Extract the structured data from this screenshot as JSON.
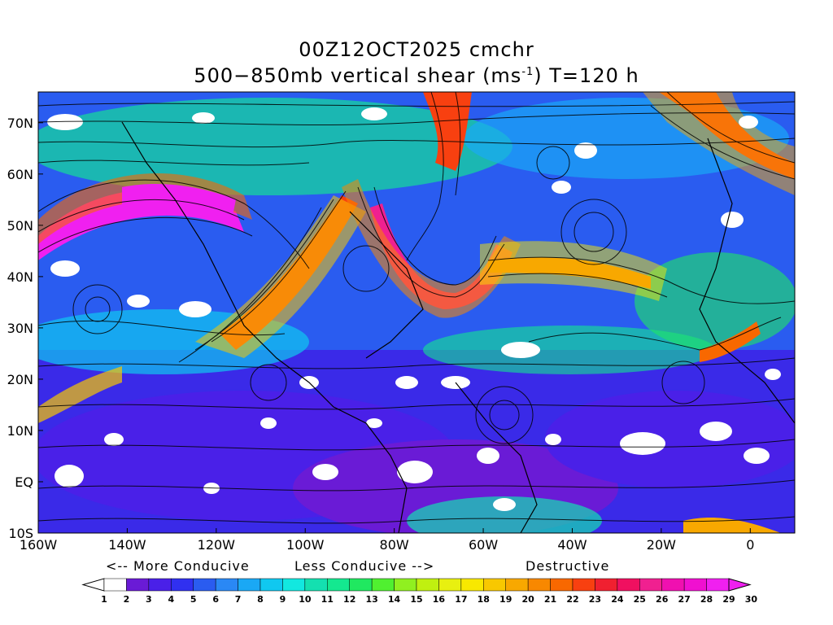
{
  "title": {
    "line1": "00Z12OCT2025 cmchr",
    "line2_prefix": "500−850mb vertical shear (ms",
    "line2_sup": "-1",
    "line2_suffix": ") T=120 h"
  },
  "map": {
    "lat_ticks": [
      "70N",
      "60N",
      "50N",
      "40N",
      "30N",
      "20N",
      "10N",
      "EQ",
      "10S"
    ],
    "lon_ticks": [
      "160W",
      "140W",
      "120W",
      "100W",
      "80W",
      "60W",
      "40W",
      "20W",
      "0"
    ],
    "lat_range": [
      -10,
      76
    ],
    "lon_range": [
      -160,
      10
    ]
  },
  "scale": {
    "more_conducive": "<-- More Conducive",
    "less_conducive": "Less Conducive -->",
    "destructive": "Destructive",
    "values": [
      "1",
      "2",
      "3",
      "4",
      "5",
      "6",
      "7",
      "8",
      "9",
      "10",
      "11",
      "12",
      "13",
      "14",
      "15",
      "16",
      "17",
      "18",
      "19",
      "20",
      "21",
      "22",
      "23",
      "24",
      "25",
      "26",
      "27",
      "28",
      "29",
      "30"
    ],
    "colors": [
      "#ffffff",
      "#6a1bd6",
      "#4a20e8",
      "#3030f0",
      "#2a5cf0",
      "#2a88f5",
      "#1aa8f5",
      "#10c8f0",
      "#12e8e0",
      "#14e0b0",
      "#14e890",
      "#20e860",
      "#50f030",
      "#90f020",
      "#c0f010",
      "#e8f010",
      "#f8e800",
      "#f8c800",
      "#f8a800",
      "#f88800",
      "#f86800",
      "#f84010",
      "#f02030",
      "#f01060",
      "#f02090",
      "#f010b0",
      "#f010d0",
      "#f020f0"
    ],
    "under_color": "#ffffff",
    "over_color": "#f020f0"
  }
}
